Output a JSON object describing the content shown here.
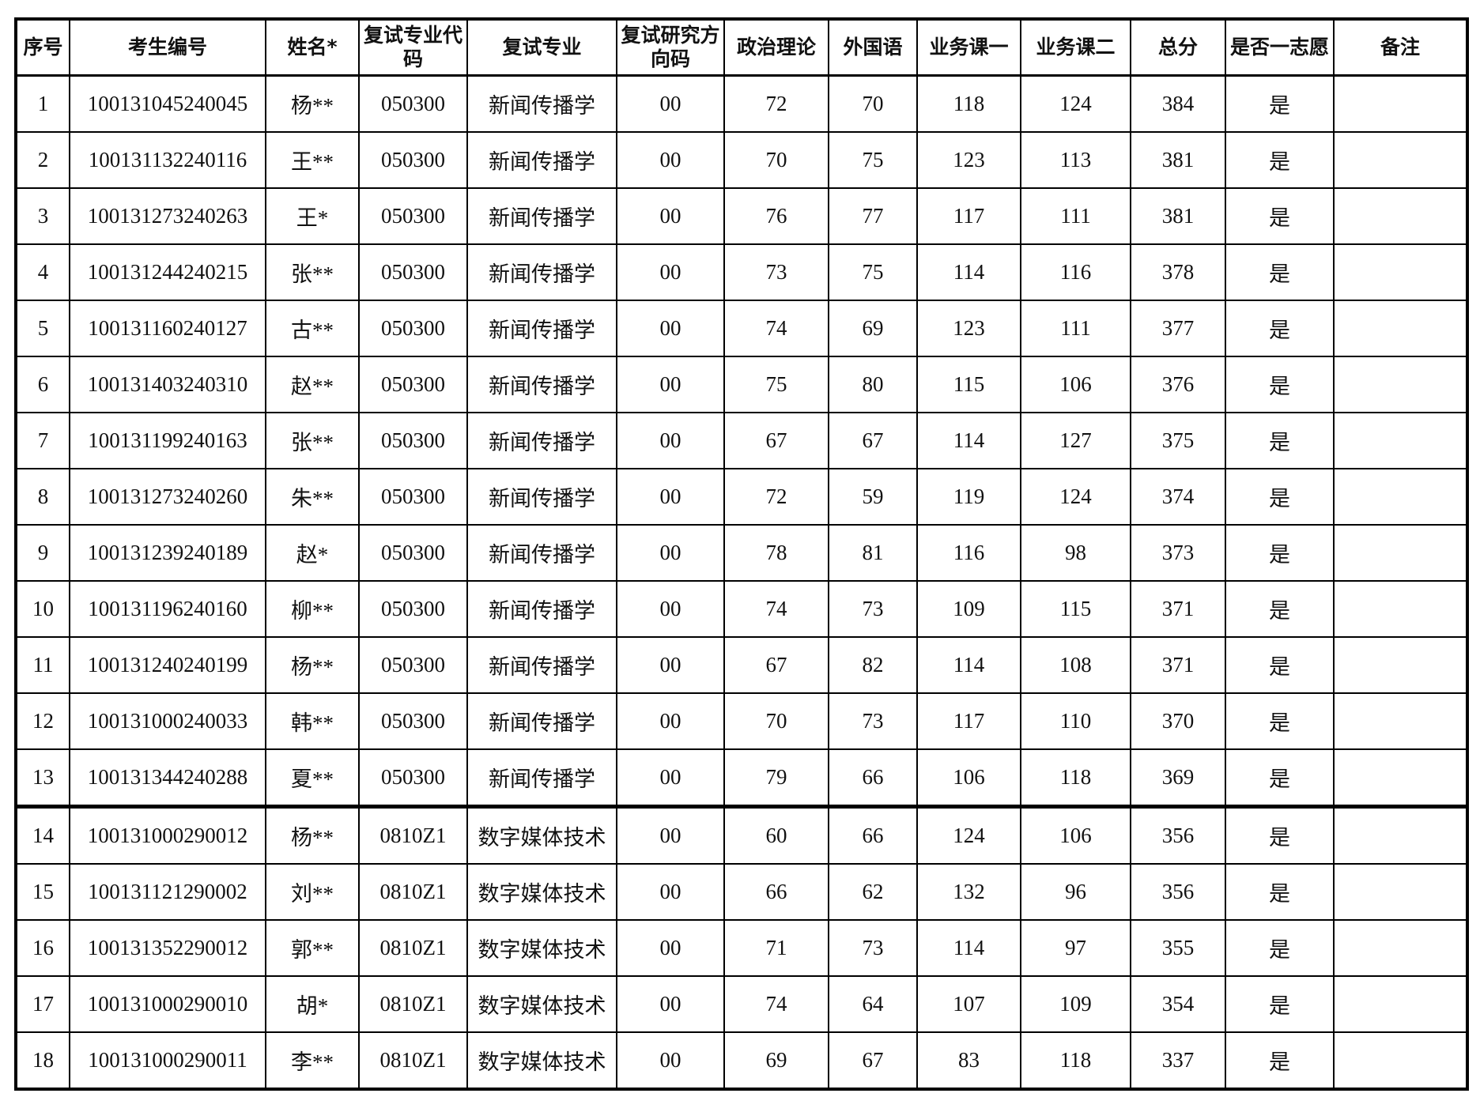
{
  "table": {
    "headers": [
      "序号",
      "考生编号",
      "姓名*",
      "复试专业代码",
      "复试专业",
      "复试研究方向码",
      "政治理论",
      "外国语",
      "业务课一",
      "业务课二",
      "总分",
      "是否一志愿",
      "备注"
    ],
    "rows": [
      [
        "1",
        "100131045240045",
        "杨**",
        "050300",
        "新闻传播学",
        "00",
        "72",
        "70",
        "118",
        "124",
        "384",
        "是",
        ""
      ],
      [
        "2",
        "100131132240116",
        "王**",
        "050300",
        "新闻传播学",
        "00",
        "70",
        "75",
        "123",
        "113",
        "381",
        "是",
        ""
      ],
      [
        "3",
        "100131273240263",
        "王*",
        "050300",
        "新闻传播学",
        "00",
        "76",
        "77",
        "117",
        "111",
        "381",
        "是",
        ""
      ],
      [
        "4",
        "100131244240215",
        "张**",
        "050300",
        "新闻传播学",
        "00",
        "73",
        "75",
        "114",
        "116",
        "378",
        "是",
        ""
      ],
      [
        "5",
        "100131160240127",
        "古**",
        "050300",
        "新闻传播学",
        "00",
        "74",
        "69",
        "123",
        "111",
        "377",
        "是",
        ""
      ],
      [
        "6",
        "100131403240310",
        "赵**",
        "050300",
        "新闻传播学",
        "00",
        "75",
        "80",
        "115",
        "106",
        "376",
        "是",
        ""
      ],
      [
        "7",
        "100131199240163",
        "张**",
        "050300",
        "新闻传播学",
        "00",
        "67",
        "67",
        "114",
        "127",
        "375",
        "是",
        ""
      ],
      [
        "8",
        "100131273240260",
        "朱**",
        "050300",
        "新闻传播学",
        "00",
        "72",
        "59",
        "119",
        "124",
        "374",
        "是",
        ""
      ],
      [
        "9",
        "100131239240189",
        "赵*",
        "050300",
        "新闻传播学",
        "00",
        "78",
        "81",
        "116",
        "98",
        "373",
        "是",
        ""
      ],
      [
        "10",
        "100131196240160",
        "柳**",
        "050300",
        "新闻传播学",
        "00",
        "74",
        "73",
        "109",
        "115",
        "371",
        "是",
        ""
      ],
      [
        "11",
        "100131240240199",
        "杨**",
        "050300",
        "新闻传播学",
        "00",
        "67",
        "82",
        "114",
        "108",
        "371",
        "是",
        ""
      ],
      [
        "12",
        "100131000240033",
        "韩**",
        "050300",
        "新闻传播学",
        "00",
        "70",
        "73",
        "117",
        "110",
        "370",
        "是",
        ""
      ],
      [
        "13",
        "100131344240288",
        "夏**",
        "050300",
        "新闻传播学",
        "00",
        "79",
        "66",
        "106",
        "118",
        "369",
        "是",
        ""
      ],
      [
        "14",
        "100131000290012",
        "杨**",
        "0810Z1",
        "数字媒体技术",
        "00",
        "60",
        "66",
        "124",
        "106",
        "356",
        "是",
        ""
      ],
      [
        "15",
        "100131121290002",
        "刘**",
        "0810Z1",
        "数字媒体技术",
        "00",
        "66",
        "62",
        "132",
        "96",
        "356",
        "是",
        ""
      ],
      [
        "16",
        "100131352290012",
        "郭**",
        "0810Z1",
        "数字媒体技术",
        "00",
        "71",
        "73",
        "114",
        "97",
        "355",
        "是",
        ""
      ],
      [
        "17",
        "100131000290010",
        "胡*",
        "0810Z1",
        "数字媒体技术",
        "00",
        "74",
        "64",
        "107",
        "109",
        "354",
        "是",
        ""
      ],
      [
        "18",
        "100131000290011",
        "李**",
        "0810Z1",
        "数字媒体技术",
        "00",
        "69",
        "67",
        "83",
        "118",
        "337",
        "是",
        ""
      ]
    ]
  }
}
